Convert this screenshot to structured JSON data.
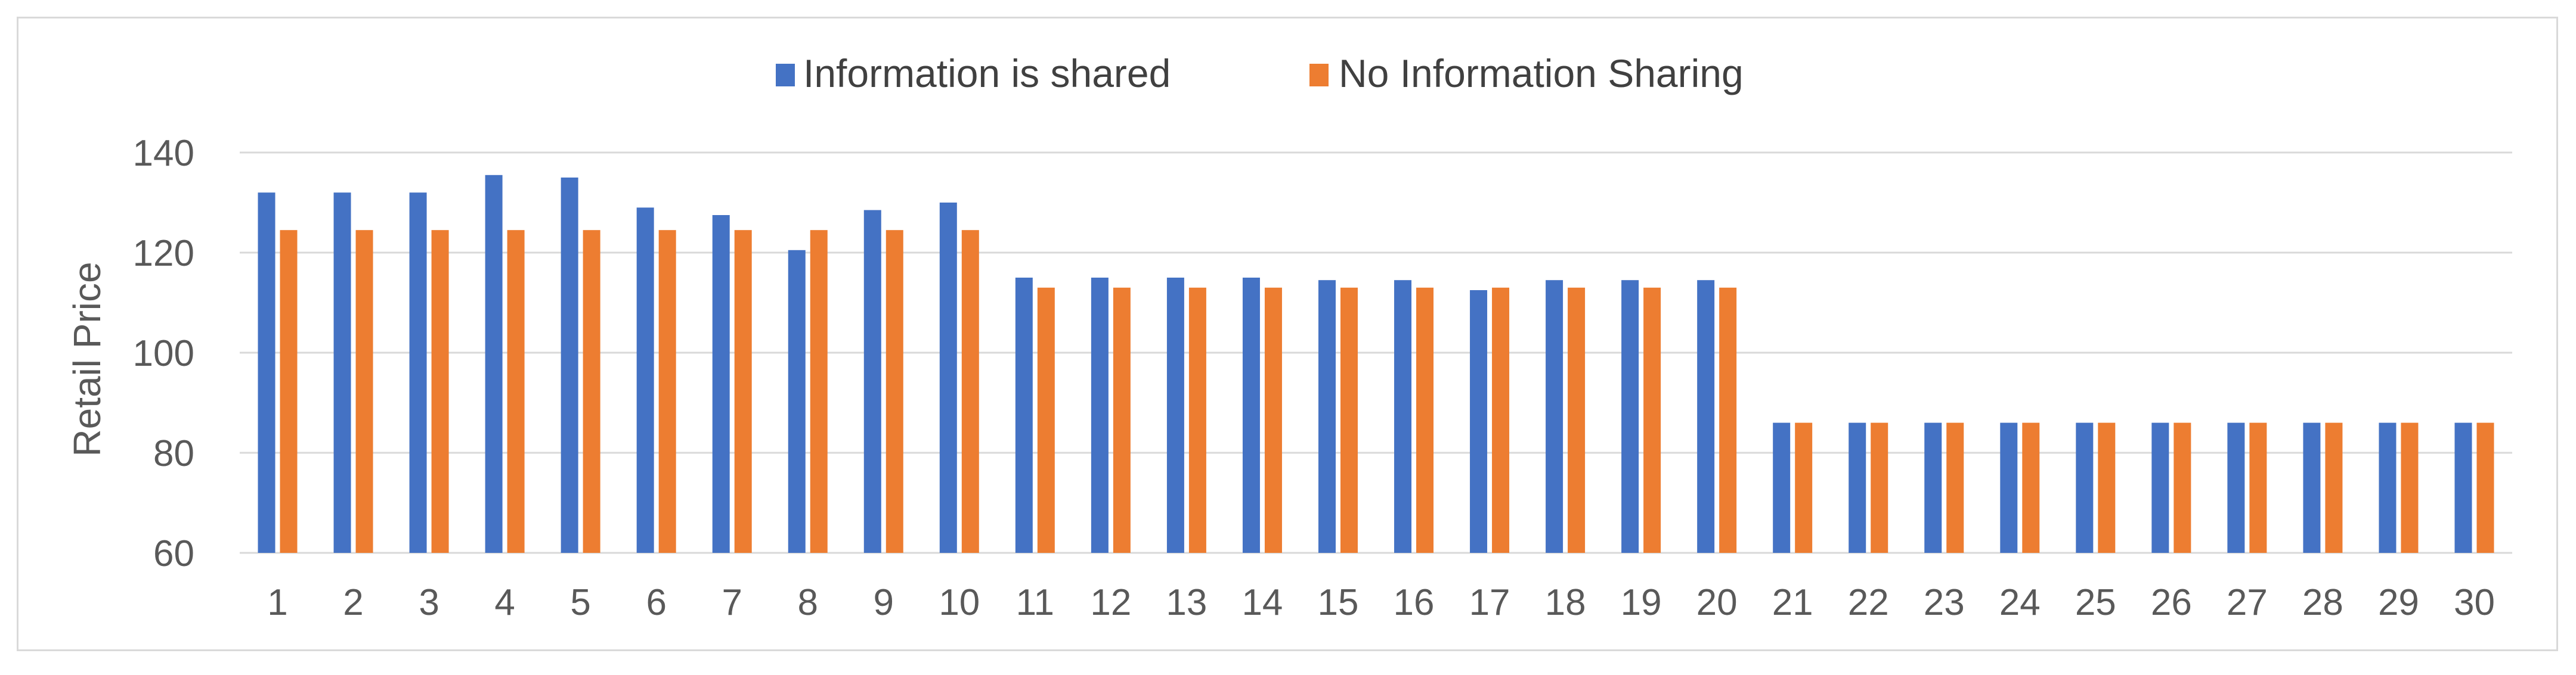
{
  "chart_data": {
    "type": "bar",
    "title": "",
    "xlabel": "",
    "ylabel": "Retail Price",
    "ylim": [
      60,
      140
    ],
    "yticks": [
      60,
      80,
      100,
      120,
      140
    ],
    "grid": true,
    "legend_position": "top",
    "categories": [
      "1",
      "2",
      "3",
      "4",
      "5",
      "6",
      "7",
      "8",
      "9",
      "10",
      "11",
      "12",
      "13",
      "14",
      "15",
      "16",
      "17",
      "18",
      "19",
      "20",
      "21",
      "22",
      "23",
      "24",
      "25",
      "26",
      "27",
      "28",
      "29",
      "30"
    ],
    "series": [
      {
        "name": "Information is shared",
        "color": "#4472c4",
        "values": [
          132,
          132,
          132,
          135.5,
          135,
          129,
          127.5,
          120.5,
          128.5,
          130,
          115,
          115,
          115,
          115,
          114.5,
          114.5,
          112.5,
          114.5,
          114.5,
          114.5,
          86,
          86,
          86,
          86,
          86,
          86,
          86,
          86,
          86,
          86
        ]
      },
      {
        "name": "No Information Sharing",
        "color": "#ed7d31",
        "values": [
          124.5,
          124.5,
          124.5,
          124.5,
          124.5,
          124.5,
          124.5,
          124.5,
          124.5,
          124.5,
          113,
          113,
          113,
          113,
          113,
          113,
          113,
          113,
          113,
          113,
          86,
          86,
          86,
          86,
          86,
          86,
          86,
          86,
          86,
          86
        ]
      }
    ],
    "gridline_color": "#d9d9d9"
  }
}
